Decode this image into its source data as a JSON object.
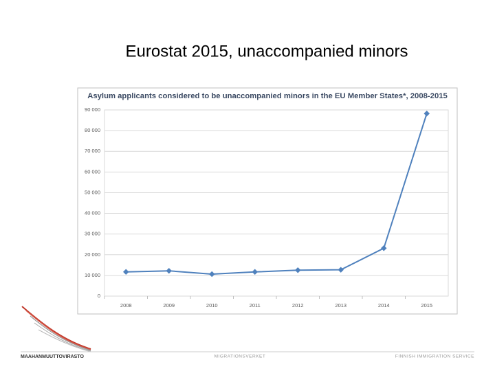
{
  "slide_title": "Eurostat 2015, unaccompanied minors",
  "footer": {
    "left": "MAAHANMUUTTOVIRASTO",
    "center": "MIGRATIONSVERKET",
    "right": "FINNISH IMMIGRATION SERVICE"
  },
  "chart_data": {
    "type": "line",
    "title": "Asylum applicants considered to be unaccompanied minors in the EU Member States*, 2008-2015",
    "categories": [
      "2008",
      "2009",
      "2010",
      "2011",
      "2012",
      "2013",
      "2014",
      "2015"
    ],
    "values": [
      11695,
      12225,
      10610,
      11690,
      12540,
      12725,
      23150,
      88245
    ],
    "color": "#4f81bd",
    "ylim": [
      0,
      90000
    ],
    "yticks": [
      0,
      {
        "value": 10000,
        "label": "10 000"
      },
      {
        "value": 20000,
        "label": "20 000"
      },
      {
        "value": 30000,
        "label": "30 000"
      },
      {
        "value": 40000,
        "label": "40 000"
      },
      {
        "value": 50000,
        "label": "50 000"
      },
      {
        "value": 60000,
        "label": "60 000"
      },
      {
        "value": 70000,
        "label": "70 000"
      },
      {
        "value": 80000,
        "label": "80 000"
      },
      {
        "value": 90000,
        "label": "90 000"
      }
    ],
    "grid": true
  }
}
